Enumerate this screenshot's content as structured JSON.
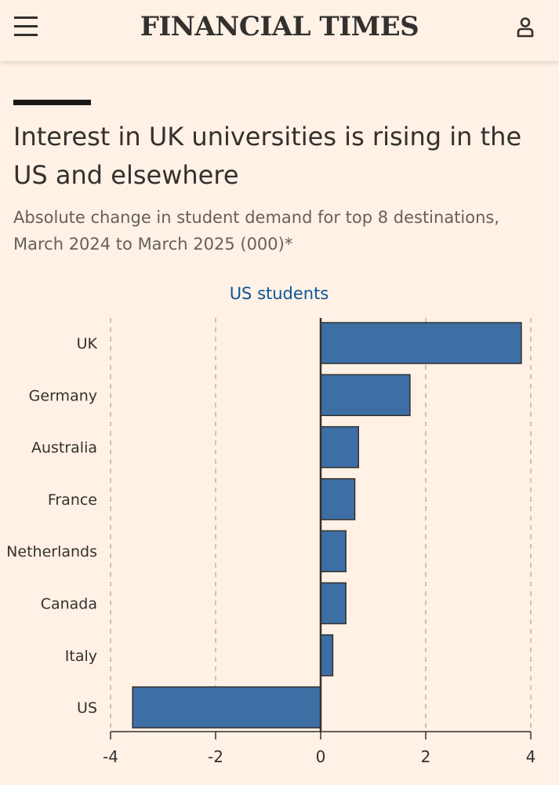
{
  "header": {
    "brand": "FINANCIAL TIMES",
    "menu_icon": "hamburger-menu-icon",
    "user_icon": "user-account-icon"
  },
  "article": {
    "title": "Interest in UK universities is rising in the US and elsewhere",
    "subtitle": "Absolute change in student demand for top 8 destinations, March 2024 to March 2025 (000)*"
  },
  "colors": {
    "background": "#FFF1E5",
    "bar": "#3D6FA5",
    "bar_outline": "#33302E",
    "panel_title": "#0F5499",
    "gridline": "#CCC1B7",
    "axis": "#33302E"
  },
  "chart_data": {
    "type": "bar",
    "orientation": "horizontal",
    "panel_title": "US students",
    "categories": [
      "UK",
      "Germany",
      "Australia",
      "France",
      "Netherlands",
      "Canada",
      "Italy",
      "US"
    ],
    "values": [
      3.82,
      1.7,
      0.72,
      0.65,
      0.48,
      0.48,
      0.23,
      -3.58
    ],
    "xlim": [
      -4,
      4
    ],
    "xticks": [
      -4,
      -2,
      0,
      2,
      4
    ],
    "xtick_labels": [
      "-4",
      "-2",
      "0",
      "2",
      "4"
    ],
    "grid": "vertical dashed",
    "xlabel": "",
    "ylabel": ""
  }
}
